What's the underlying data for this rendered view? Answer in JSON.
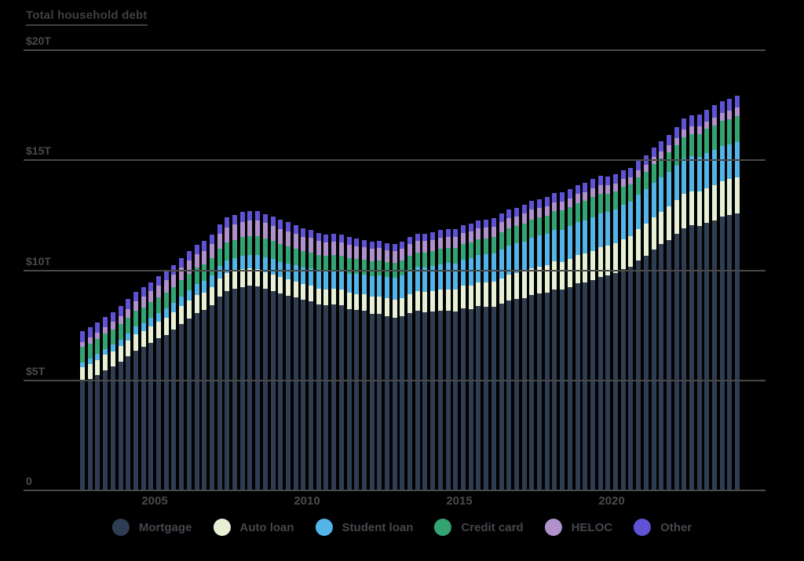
{
  "title": "Total household debt",
  "colors": {
    "background": "#000000",
    "grid": "#494949",
    "axis_text": "#4a4a4a",
    "title_text": "#3f3f3f",
    "legend_text": "#43464d"
  },
  "chart_data": {
    "type": "bar",
    "stacked": true,
    "title": "Total household debt",
    "units": "trillions of dollars",
    "frequency": "quarterly",
    "x_start": "2003 Q1",
    "x_end": "2024 Q3",
    "x_tick_labels": [
      "2005",
      "2010",
      "2015",
      "2020"
    ],
    "x_tick_years": [
      2005,
      2010,
      2015,
      2020
    ],
    "ylim": [
      0,
      20
    ],
    "grid": true,
    "legend_position": "bottom",
    "y_ticks": [
      {
        "label": "$20T",
        "value": 20
      },
      {
        "label": "$15T",
        "value": 15
      },
      {
        "label": "$10T",
        "value": 10
      },
      {
        "label": "$5T",
        "value": 5
      },
      {
        "label": "0",
        "value": 0
      }
    ],
    "series": [
      {
        "name": "Mortgage",
        "color": "#2e3d51",
        "values": [
          4.94,
          5.08,
          5.24,
          5.45,
          5.62,
          5.84,
          6.09,
          6.36,
          6.51,
          6.7,
          6.9,
          7.07,
          7.31,
          7.57,
          7.82,
          8.05,
          8.19,
          8.43,
          8.81,
          9.04,
          9.15,
          9.24,
          9.29,
          9.26,
          9.15,
          9.06,
          8.94,
          8.85,
          8.77,
          8.65,
          8.59,
          8.45,
          8.4,
          8.44,
          8.4,
          8.25,
          8.19,
          8.15,
          8.03,
          8.03,
          7.93,
          7.84,
          7.9,
          8.05,
          8.16,
          8.1,
          8.13,
          8.17,
          8.17,
          8.12,
          8.26,
          8.25,
          8.37,
          8.36,
          8.35,
          8.48,
          8.63,
          8.69,
          8.74,
          8.88,
          8.94,
          9.0,
          9.14,
          9.12,
          9.24,
          9.41,
          9.44,
          9.56,
          9.71,
          9.78,
          9.86,
          10.04,
          10.16,
          10.44,
          10.67,
          10.93,
          11.18,
          11.39,
          11.67,
          11.92,
          12.04,
          12.01,
          12.14,
          12.25,
          12.44,
          12.52,
          12.59
        ]
      },
      {
        "name": "Auto loan",
        "color": "#e7f0d5",
        "values": [
          0.64,
          0.66,
          0.69,
          0.7,
          0.7,
          0.71,
          0.72,
          0.73,
          0.74,
          0.75,
          0.77,
          0.79,
          0.79,
          0.8,
          0.81,
          0.82,
          0.81,
          0.81,
          0.82,
          0.82,
          0.82,
          0.81,
          0.81,
          0.79,
          0.77,
          0.75,
          0.74,
          0.74,
          0.72,
          0.71,
          0.71,
          0.71,
          0.71,
          0.71,
          0.71,
          0.73,
          0.74,
          0.75,
          0.77,
          0.78,
          0.79,
          0.81,
          0.84,
          0.86,
          0.88,
          0.91,
          0.93,
          0.95,
          0.97,
          1.0,
          1.03,
          1.06,
          1.08,
          1.1,
          1.14,
          1.16,
          1.17,
          1.19,
          1.21,
          1.22,
          1.23,
          1.24,
          1.26,
          1.27,
          1.28,
          1.3,
          1.32,
          1.33,
          1.35,
          1.34,
          1.36,
          1.37,
          1.38,
          1.42,
          1.44,
          1.46,
          1.47,
          1.5,
          1.52,
          1.55,
          1.56,
          1.58,
          1.6,
          1.61,
          1.62,
          1.63,
          1.64
        ]
      },
      {
        "name": "Student loan",
        "color": "#52b4e7",
        "values": [
          0.24,
          0.25,
          0.26,
          0.28,
          0.3,
          0.31,
          0.33,
          0.35,
          0.36,
          0.38,
          0.39,
          0.41,
          0.43,
          0.45,
          0.47,
          0.49,
          0.51,
          0.53,
          0.55,
          0.57,
          0.59,
          0.61,
          0.61,
          0.64,
          0.67,
          0.69,
          0.69,
          0.71,
          0.74,
          0.76,
          0.78,
          0.81,
          0.84,
          0.85,
          0.87,
          0.87,
          0.9,
          0.91,
          0.94,
          0.97,
          0.99,
          1.01,
          1.03,
          1.08,
          1.11,
          1.12,
          1.13,
          1.16,
          1.19,
          1.19,
          1.2,
          1.23,
          1.26,
          1.26,
          1.28,
          1.31,
          1.34,
          1.34,
          1.36,
          1.38,
          1.41,
          1.41,
          1.44,
          1.46,
          1.49,
          1.48,
          1.5,
          1.51,
          1.54,
          1.54,
          1.55,
          1.56,
          1.58,
          1.57,
          1.58,
          1.58,
          1.59,
          1.59,
          1.57,
          1.6,
          1.6,
          1.57,
          1.6,
          1.6,
          1.6,
          1.58,
          1.61
        ]
      },
      {
        "name": "Credit card",
        "color": "#34a372",
        "values": [
          0.69,
          0.69,
          0.69,
          0.7,
          0.7,
          0.7,
          0.71,
          0.72,
          0.71,
          0.71,
          0.72,
          0.73,
          0.72,
          0.73,
          0.74,
          0.75,
          0.75,
          0.77,
          0.79,
          0.82,
          0.83,
          0.85,
          0.85,
          0.87,
          0.84,
          0.82,
          0.81,
          0.79,
          0.76,
          0.74,
          0.73,
          0.73,
          0.7,
          0.69,
          0.69,
          0.7,
          0.68,
          0.67,
          0.67,
          0.68,
          0.66,
          0.67,
          0.67,
          0.68,
          0.66,
          0.67,
          0.68,
          0.7,
          0.68,
          0.7,
          0.71,
          0.73,
          0.71,
          0.73,
          0.75,
          0.78,
          0.76,
          0.78,
          0.81,
          0.83,
          0.82,
          0.83,
          0.84,
          0.87,
          0.85,
          0.87,
          0.88,
          0.93,
          0.89,
          0.82,
          0.81,
          0.82,
          0.77,
          0.79,
          0.8,
          0.86,
          0.84,
          0.89,
          0.93,
          0.99,
          0.99,
          1.03,
          1.08,
          1.13,
          1.12,
          1.14,
          1.17
        ]
      },
      {
        "name": "HELOC",
        "color": "#b091cb",
        "values": [
          0.24,
          0.26,
          0.28,
          0.3,
          0.33,
          0.36,
          0.39,
          0.44,
          0.47,
          0.5,
          0.53,
          0.54,
          0.56,
          0.57,
          0.6,
          0.62,
          0.63,
          0.65,
          0.67,
          0.69,
          0.68,
          0.69,
          0.69,
          0.7,
          0.71,
          0.71,
          0.7,
          0.69,
          0.68,
          0.67,
          0.66,
          0.64,
          0.63,
          0.62,
          0.61,
          0.6,
          0.59,
          0.58,
          0.57,
          0.56,
          0.55,
          0.54,
          0.54,
          0.53,
          0.53,
          0.52,
          0.51,
          0.51,
          0.51,
          0.5,
          0.49,
          0.49,
          0.49,
          0.48,
          0.47,
          0.47,
          0.46,
          0.45,
          0.45,
          0.44,
          0.44,
          0.43,
          0.42,
          0.41,
          0.41,
          0.4,
          0.4,
          0.39,
          0.39,
          0.38,
          0.36,
          0.35,
          0.34,
          0.32,
          0.32,
          0.32,
          0.32,
          0.32,
          0.32,
          0.34,
          0.34,
          0.34,
          0.35,
          0.36,
          0.38,
          0.38,
          0.39
        ]
      },
      {
        "name": "Other",
        "color": "#6052d4",
        "values": [
          0.48,
          0.48,
          0.48,
          0.45,
          0.45,
          0.45,
          0.45,
          0.43,
          0.43,
          0.42,
          0.42,
          0.41,
          0.41,
          0.42,
          0.42,
          0.43,
          0.43,
          0.44,
          0.45,
          0.45,
          0.45,
          0.46,
          0.43,
          0.43,
          0.42,
          0.41,
          0.41,
          0.41,
          0.39,
          0.38,
          0.37,
          0.36,
          0.35,
          0.35,
          0.35,
          0.35,
          0.34,
          0.33,
          0.33,
          0.33,
          0.32,
          0.32,
          0.33,
          0.33,
          0.33,
          0.33,
          0.34,
          0.34,
          0.34,
          0.35,
          0.36,
          0.36,
          0.37,
          0.38,
          0.39,
          0.39,
          0.39,
          0.4,
          0.41,
          0.41,
          0.4,
          0.41,
          0.42,
          0.42,
          0.41,
          0.42,
          0.43,
          0.43,
          0.42,
          0.41,
          0.42,
          0.42,
          0.42,
          0.42,
          0.43,
          0.44,
          0.45,
          0.47,
          0.49,
          0.51,
          0.51,
          0.53,
          0.53,
          0.54,
          0.54,
          0.54,
          0.55
        ]
      }
    ]
  }
}
